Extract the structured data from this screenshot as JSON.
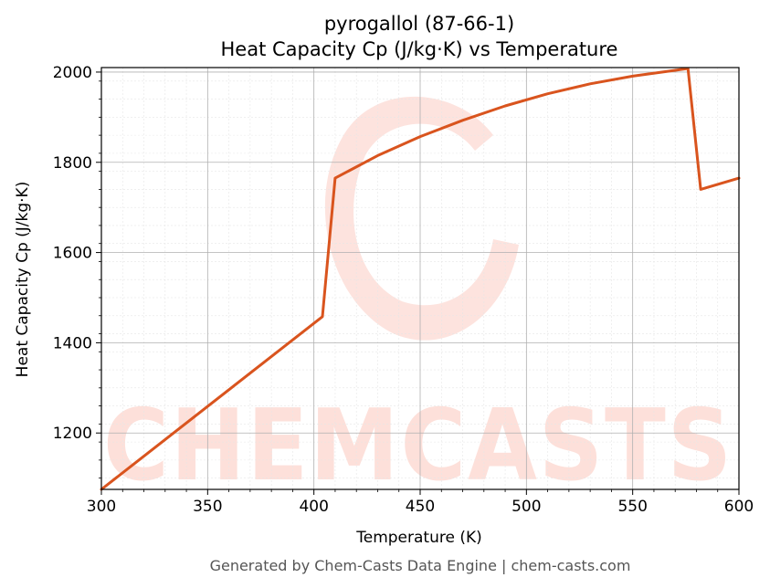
{
  "chart_data": {
    "type": "line",
    "title": "pyrogallol (87-66-1)",
    "subtitle": "Heat Capacity Cp (J/kg·K) vs Temperature",
    "xlabel": "Temperature (K)",
    "ylabel": "Heat Capacity Cp (J/kg·K)",
    "xlim": [
      300,
      600
    ],
    "ylim": [
      1075,
      2010
    ],
    "xticks": [
      300,
      350,
      400,
      450,
      500,
      550,
      600
    ],
    "yticks": [
      1200,
      1400,
      1600,
      1800,
      2000
    ],
    "grid": true,
    "series": [
      {
        "color": "#d9541e",
        "x": [
          300,
          404,
          410,
          430,
          450,
          470,
          490,
          510,
          530,
          550,
          570,
          576,
          582,
          600
        ],
        "y": [
          1075,
          1458,
          1765,
          1815,
          1857,
          1893,
          1925,
          1952,
          1974,
          1991,
          2004,
          2008,
          1740,
          1765
        ]
      }
    ]
  },
  "watermark": {
    "text": "CHEMCASTS",
    "color": "#fde0da"
  },
  "footer": "Generated by Chem-Casts Data Engine | chem-casts.com"
}
